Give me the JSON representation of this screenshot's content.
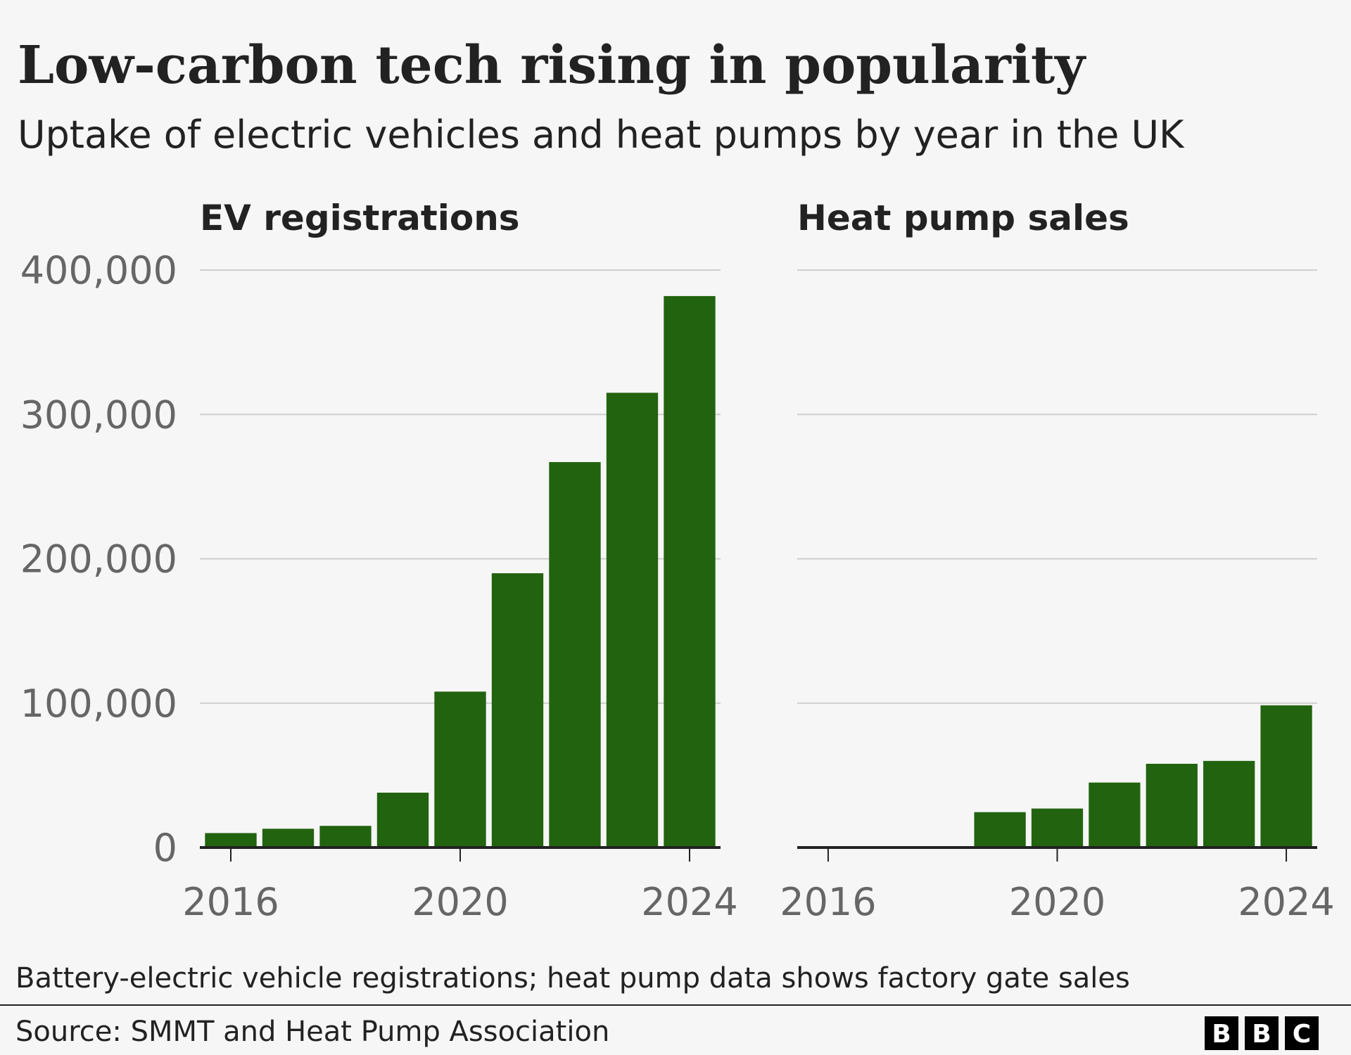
{
  "title": "Low-carbon tech rising in popularity",
  "subtitle": "Uptake of electric vehicles and heat pumps by year in the UK",
  "chart_data": [
    {
      "type": "bar",
      "title": "EV registrations",
      "x": [
        2016,
        2017,
        2018,
        2019,
        2020,
        2021,
        2022,
        2023,
        2024
      ],
      "values": [
        10000,
        13000,
        15000,
        38000,
        108000,
        190000,
        267000,
        315000,
        382000
      ],
      "color": "#22630f",
      "xlim": [
        2015.46,
        2024.54
      ],
      "xticks": [
        2016,
        2020,
        2024
      ],
      "ylim": [
        0,
        400000
      ],
      "yticks": [
        0,
        {
          "value": 100000,
          "label": "100,000"
        },
        {
          "value": 200000,
          "label": "200,000"
        },
        {
          "value": 300000,
          "label": "300,000"
        },
        {
          "value": 400000,
          "label": "400,000"
        }
      ],
      "grid": true
    },
    {
      "type": "bar",
      "title": "Heat pump sales",
      "x": [
        2016,
        2017,
        2018,
        2019,
        2020,
        2021,
        2022,
        2023,
        2024
      ],
      "values": [
        null,
        null,
        null,
        24500,
        27000,
        45000,
        58000,
        60000,
        98500
      ],
      "color": "#22630f",
      "xlim": [
        2015.46,
        2024.54
      ],
      "xticks": [
        2016,
        2020,
        2024
      ],
      "ylim": [
        0,
        400000
      ],
      "yticks": [
        0,
        100000,
        200000,
        300000,
        400000
      ],
      "ytick_labels": false,
      "grid": true
    }
  ],
  "note": "Battery-electric vehicle registrations; heat pump data shows factory gate sales",
  "source": "Source: SMMT and Heat Pump Association",
  "logo": [
    "B",
    "B",
    "C"
  ]
}
